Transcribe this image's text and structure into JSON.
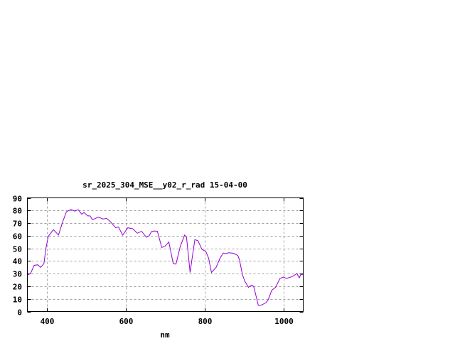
{
  "chart_data": {
    "type": "line",
    "title": "sr_2025_304_MSE__y02_r_rad 15-04-00",
    "xlabel": "nm",
    "ylabel": "",
    "xlim": [
      350,
      1050
    ],
    "ylim": [
      0,
      90
    ],
    "xticks": [
      400,
      600,
      800,
      1000
    ],
    "yticks": [
      0,
      10,
      20,
      30,
      40,
      50,
      60,
      70,
      80,
      90
    ],
    "grid": true,
    "line_color": "#9400d3",
    "series": [
      {
        "x": [
          350,
          358,
          367,
          376,
          384,
          392,
          397,
          403,
          416,
          429,
          440,
          449,
          461,
          470,
          479,
          488,
          494,
          503,
          509,
          515,
          530,
          542,
          551,
          560,
          574,
          581,
          592,
          605,
          618,
          629,
          640,
          652,
          659,
          665,
          672,
          680,
          691,
          699,
          709,
          720,
          727,
          738,
          749,
          754,
          763,
          768,
          775,
          783,
          793,
          803,
          810,
          817,
          829,
          839,
          847,
          853,
          861,
          873,
          884,
          888,
          896,
          902,
          911,
          920,
          925,
          936,
          942,
          955,
          961,
          970,
          980,
          991,
          1000,
          1008,
          1021,
          1034,
          1040,
          1044,
          1050
        ],
        "y": [
          29,
          30,
          36.5,
          37,
          35,
          38,
          50,
          59.5,
          64.8,
          60.6,
          71.4,
          79,
          80.8,
          79.5,
          80.6,
          77,
          78.4,
          75.7,
          75.7,
          72.7,
          74.7,
          73.3,
          73.7,
          71.4,
          66.3,
          67,
          60.5,
          66.3,
          65.5,
          62,
          63.5,
          58.8,
          60,
          63.3,
          63.8,
          63.5,
          50.7,
          51.6,
          55,
          38,
          37.5,
          51.6,
          60.5,
          58.6,
          30.9,
          42,
          56.9,
          56,
          49.3,
          47.5,
          42.2,
          30.9,
          35,
          42.2,
          46.3,
          45.8,
          46.5,
          46.1,
          44.4,
          41.2,
          29,
          23.9,
          19.2,
          21,
          19.2,
          4.9,
          4.9,
          6.8,
          9.2,
          16.8,
          19.2,
          26.2,
          27.3,
          26.2,
          27.5,
          30,
          26.7,
          29.4,
          29
        ]
      }
    ]
  }
}
